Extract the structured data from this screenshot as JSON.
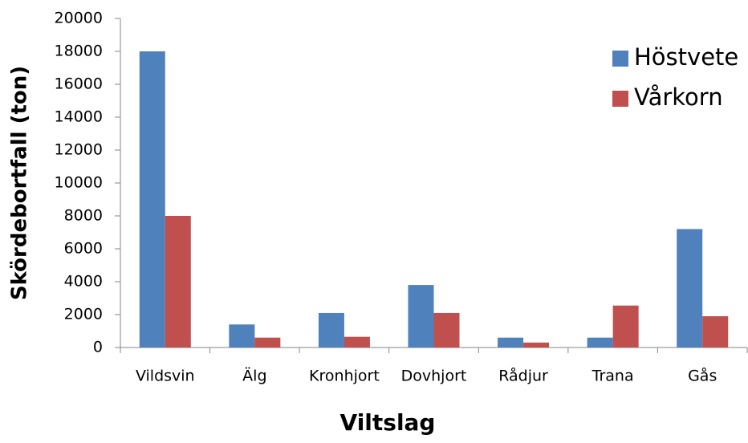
{
  "chart_data": {
    "type": "bar",
    "x_label": "Viltslag",
    "y_label": "Skördebortfall (ton)",
    "categories": [
      "Vildsvin",
      "Älg",
      "Kronhjort",
      "Dovhjort",
      "Rådjur",
      "Trana",
      "Gås"
    ],
    "series": [
      {
        "name": "Höstvete",
        "color": "#4f81bd",
        "values": [
          18000,
          1400,
          2100,
          3800,
          600,
          600,
          7200
        ]
      },
      {
        "name": "Vårkorn",
        "color": "#c0504d",
        "values": [
          8000,
          600,
          650,
          2100,
          300,
          2550,
          1900
        ]
      }
    ],
    "ylim": [
      0,
      20000
    ],
    "yticks": [
      0,
      2000,
      4000,
      6000,
      8000,
      10000,
      12000,
      14000,
      16000,
      18000,
      20000
    ],
    "grid": false,
    "legend": "top-right"
  }
}
